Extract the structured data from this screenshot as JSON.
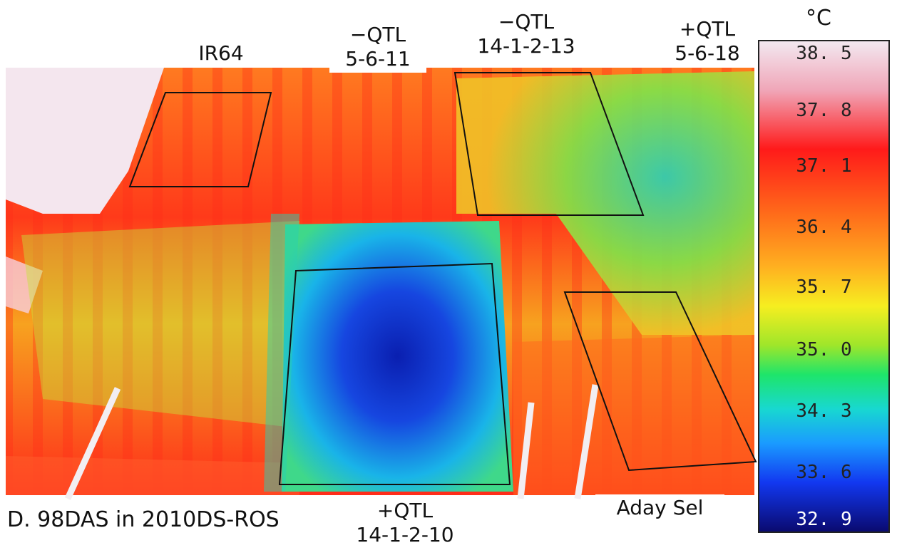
{
  "labels": {
    "ir64": "IR64",
    "qtl_5611": [
      "−QTL",
      "5-6-11"
    ],
    "qtl_14113": [
      "−QTL",
      "14-1-2-13"
    ],
    "qtl_5618": [
      "+QTL",
      "5-6-18"
    ],
    "qtl_14110": [
      "+QTL",
      "14-1-2-10"
    ],
    "aday": "Aday Sel"
  },
  "caption": "D. 98DAS in 2010DS-ROS",
  "scale": {
    "unit": "°C",
    "ticks": [
      "38. 5",
      "37. 8",
      "37. 1",
      "36. 4",
      "35. 7",
      "35. 0",
      "34. 3",
      "33. 6",
      "32. 9"
    ]
  }
}
